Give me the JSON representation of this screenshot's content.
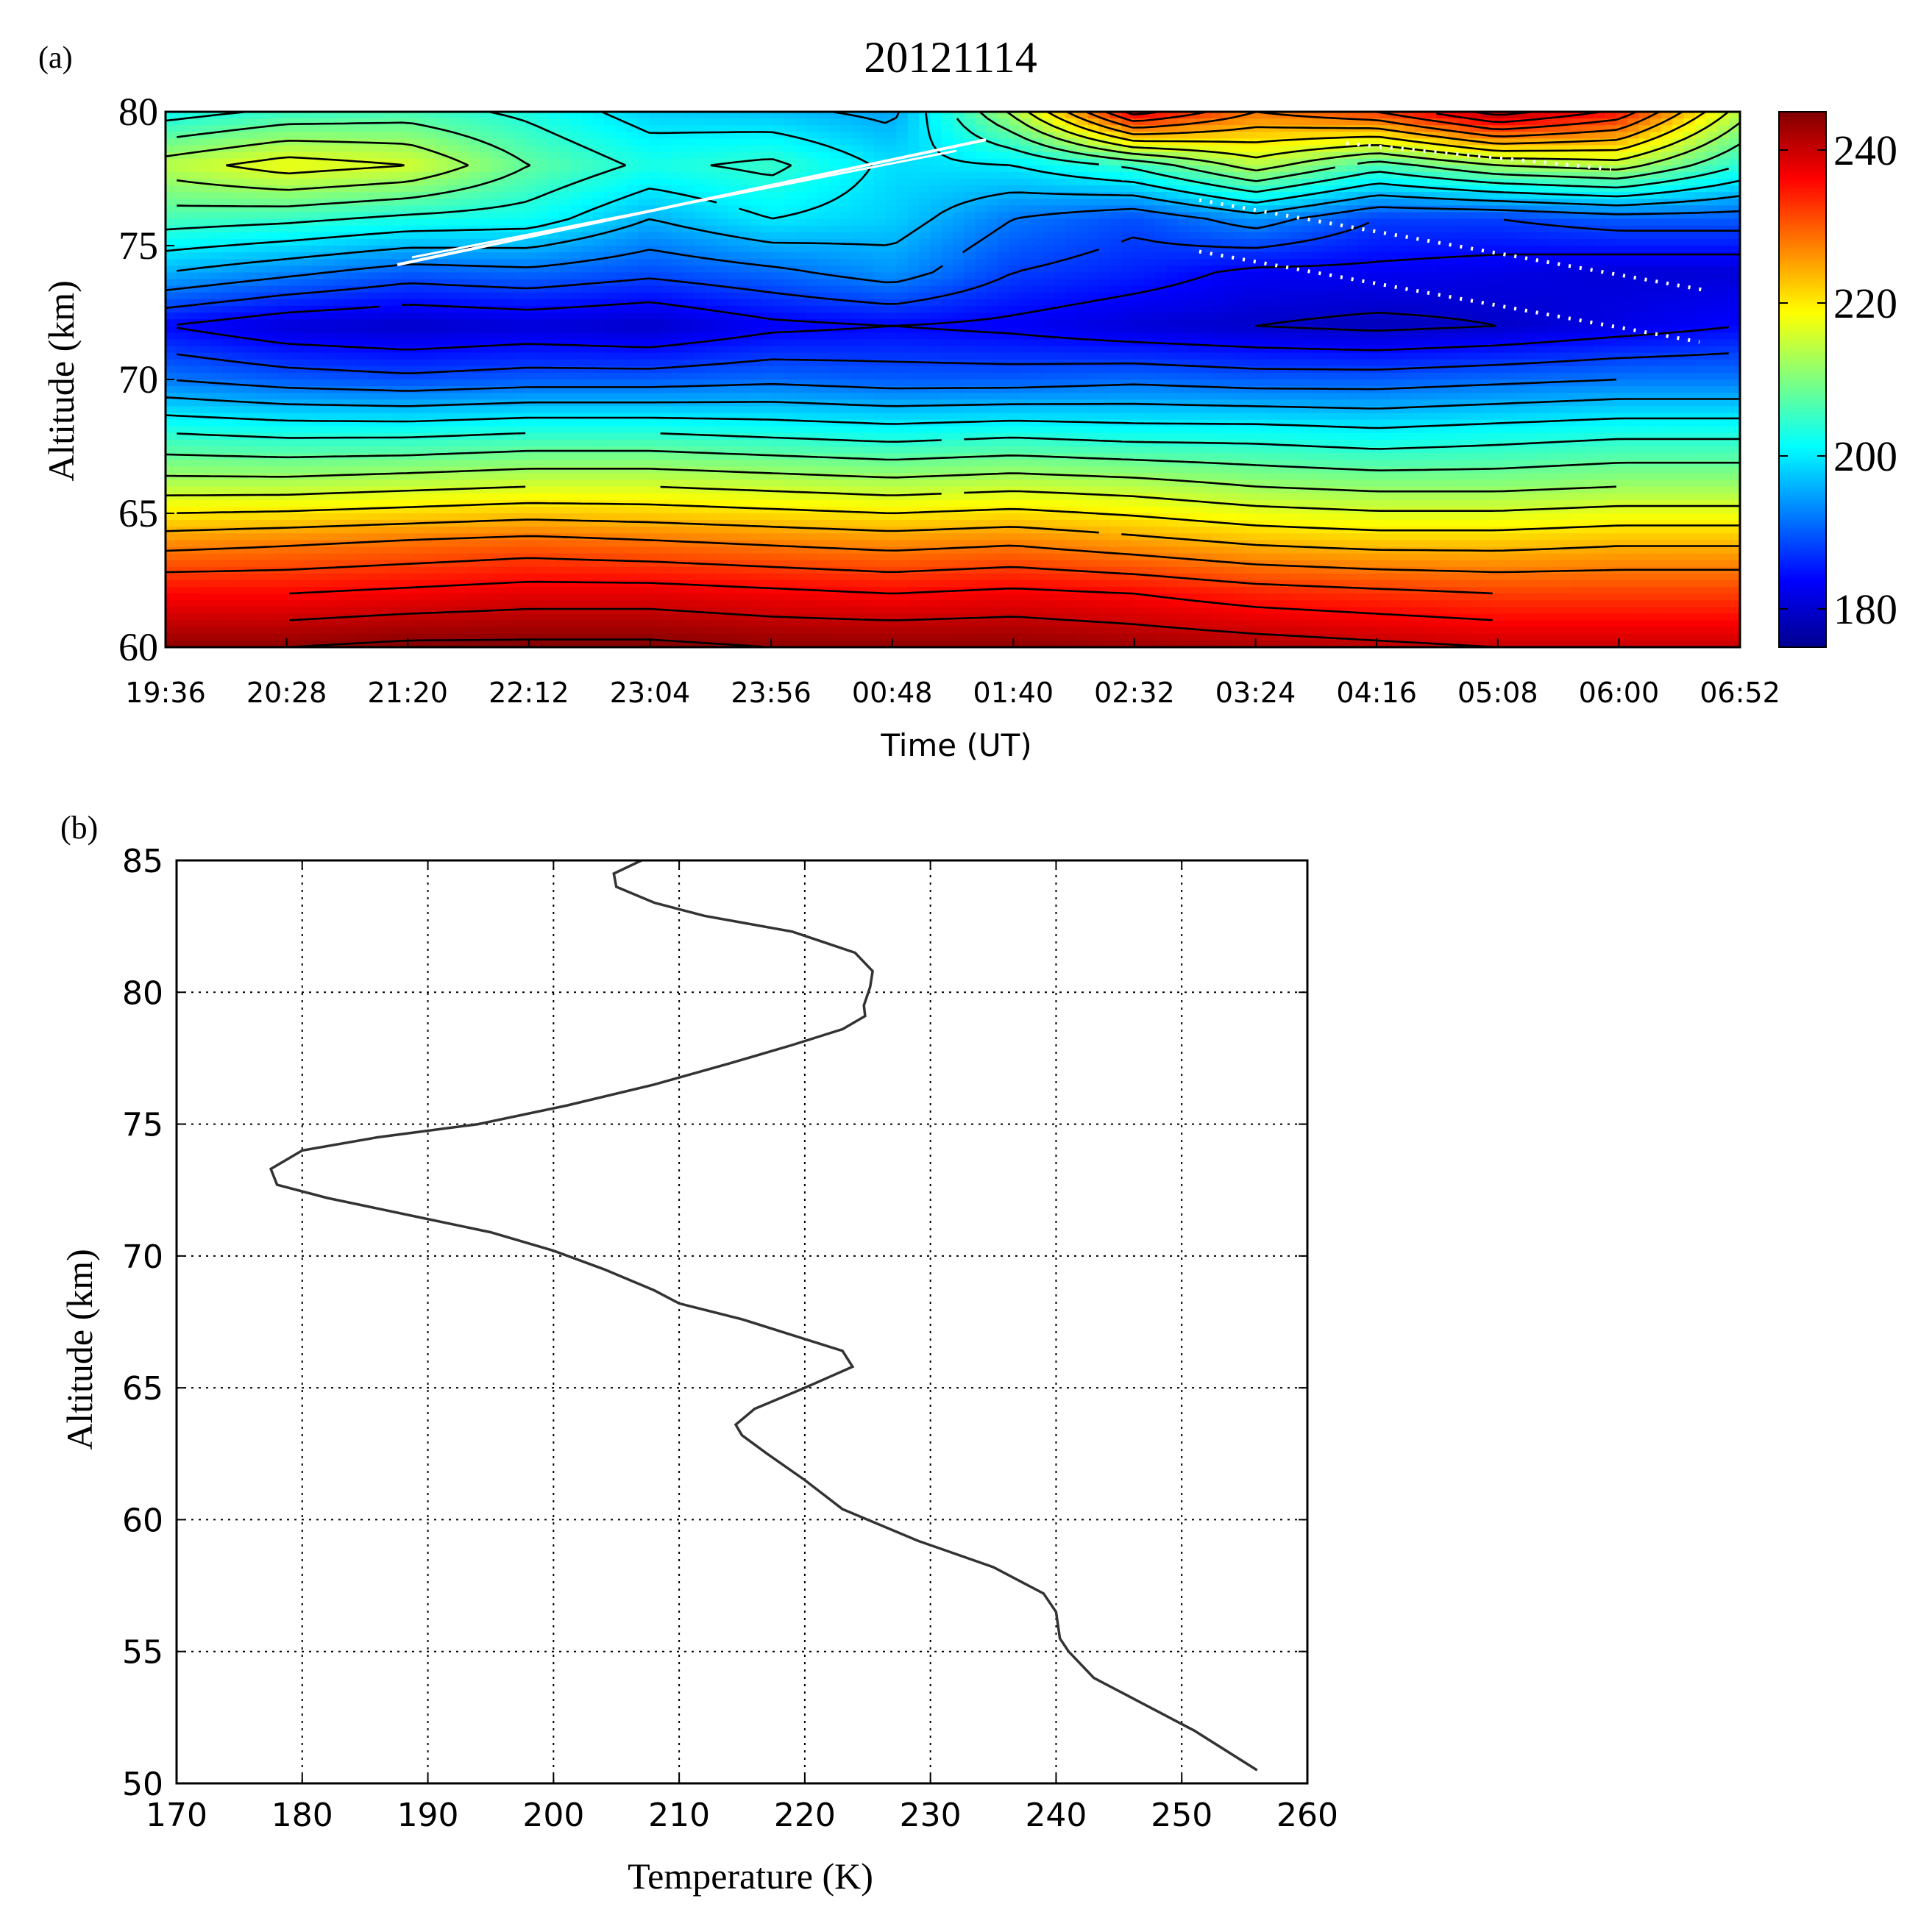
{
  "chart_data": [
    {
      "panel_label": "(a)",
      "type": "heatmap",
      "title": "20121114",
      "xlabel": "Time (UT)",
      "ylabel": "Altitude (km)",
      "x_ticks": [
        "19:36",
        "20:28",
        "21:20",
        "22:12",
        "23:04",
        "23:56",
        "00:48",
        "01:40",
        "02:32",
        "03:24",
        "04:16",
        "05:08",
        "06:00",
        "06:52"
      ],
      "y_ticks": [
        60,
        65,
        70,
        75,
        80
      ],
      "ylim": [
        60,
        80
      ],
      "colorbar": {
        "ticks": [
          180,
          200,
          220,
          240
        ],
        "range": [
          175,
          245
        ],
        "colormap": "jet"
      },
      "altitude_levels": [
        60,
        62,
        64,
        66,
        68,
        70,
        72,
        74,
        76,
        78,
        80
      ],
      "temperature_profiles": [
        [
          244,
          236,
          226,
          214,
          204,
          192,
          184,
          196,
          206,
          214,
          202
        ],
        [
          244,
          236,
          227,
          214,
          203,
          190,
          181,
          193,
          205,
          218,
          205
        ],
        [
          245,
          237,
          228,
          215,
          203,
          189,
          180,
          190,
          203,
          216,
          206
        ],
        [
          245,
          238,
          229,
          216,
          204,
          190,
          181,
          191,
          202,
          208,
          203
        ],
        [
          245,
          238,
          228,
          216,
          204,
          190,
          180,
          189,
          196,
          203,
          198
        ],
        [
          244,
          237,
          227,
          215,
          203,
          191,
          183,
          191,
          200,
          205,
          197
        ],
        [
          244,
          236,
          226,
          214,
          202,
          190,
          184,
          194,
          198,
          199,
          195
        ],
        [
          244,
          237,
          227,
          215,
          203,
          190,
          183,
          188,
          192,
          200,
          213
        ],
        [
          243,
          236,
          225,
          214,
          202,
          191,
          181,
          186,
          189,
          205,
          238
        ],
        [
          242,
          234,
          223,
          212,
          202,
          190,
          180,
          183,
          194,
          214,
          228
        ],
        [
          241,
          233,
          222,
          211,
          201,
          190,
          179,
          183,
          188,
          206,
          232
        ],
        [
          240,
          232,
          222,
          211,
          202,
          191,
          180,
          182,
          188,
          212,
          242
        ],
        [
          240,
          232,
          223,
          212,
          203,
          192,
          182,
          181,
          190,
          214,
          235
        ],
        [
          240,
          232,
          223,
          212,
          203,
          192,
          184,
          181,
          190,
          204,
          214
        ]
      ]
    },
    {
      "panel_label": "(b)",
      "type": "line",
      "xlabel": "Temperature (K)",
      "ylabel": "Altitude (km)",
      "xlim": [
        170,
        260
      ],
      "ylim": [
        50,
        85
      ],
      "x_ticks": [
        170,
        180,
        190,
        200,
        210,
        220,
        230,
        240,
        250,
        260
      ],
      "y_ticks": [
        50,
        55,
        60,
        65,
        70,
        75,
        80,
        85
      ],
      "grid": true,
      "series": [
        {
          "x": [
            256,
            251,
            247,
            243,
            241,
            240.3,
            240,
            239,
            235,
            229,
            223,
            220,
            217,
            215,
            214.5,
            216,
            220,
            223.8,
            223,
            219,
            215,
            210,
            208,
            204,
            200,
            195,
            189,
            182,
            178,
            177.5,
            180,
            186,
            194,
            201,
            208,
            214,
            219,
            223,
            224.8,
            224.7,
            225.2,
            225.4,
            224,
            219,
            212,
            208,
            205,
            204.8,
            207
          ],
          "y": [
            50.5,
            52,
            53,
            54,
            55,
            55.5,
            56.5,
            57.2,
            58.2,
            59.2,
            60.4,
            61.5,
            62.5,
            63.2,
            63.6,
            64.2,
            65,
            65.8,
            66.4,
            67,
            67.6,
            68.2,
            68.7,
            69.5,
            70.2,
            70.9,
            71.5,
            72.2,
            72.7,
            73.3,
            74,
            74.5,
            75,
            75.7,
            76.5,
            77.3,
            78,
            78.6,
            79.1,
            79.5,
            80.2,
            80.8,
            81.5,
            82.3,
            82.9,
            83.4,
            84,
            84.5,
            85
          ]
        }
      ]
    }
  ]
}
